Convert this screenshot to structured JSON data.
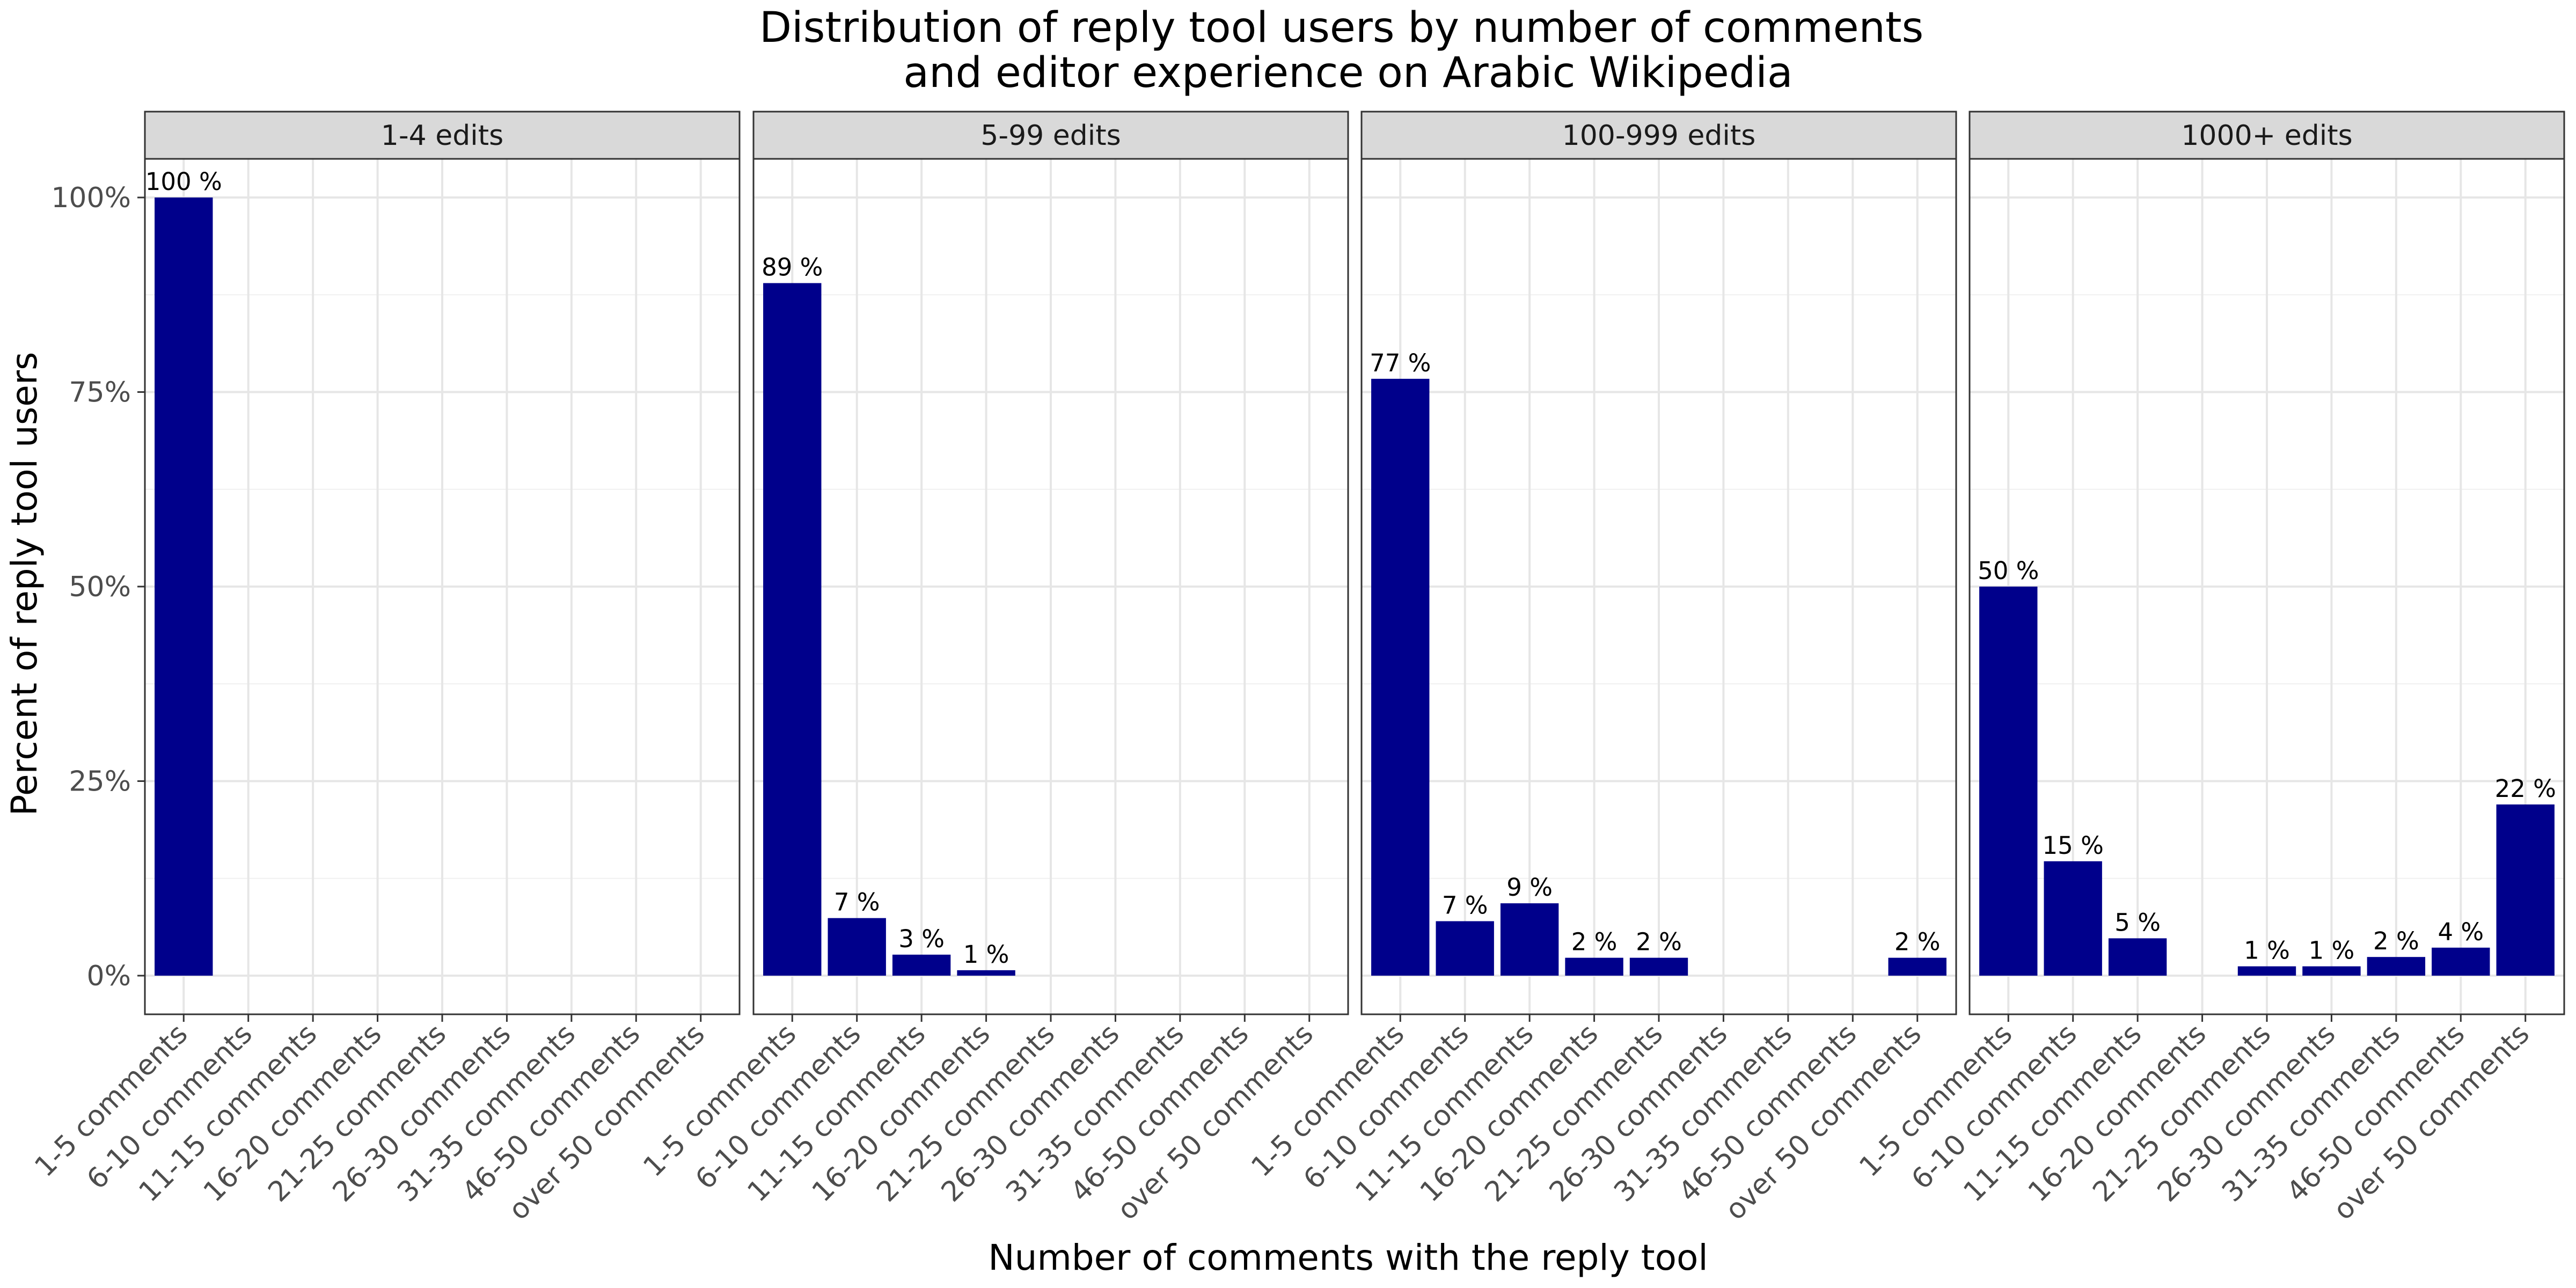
{
  "chart_data": {
    "type": "bar",
    "title": "Distribution of reply tool users by number of comments\nand editor experience on Arabic Wikipedia",
    "xlabel": "Number of comments with the reply tool",
    "ylabel": "Percent of reply tool users",
    "ylim": [
      0,
      1.05
    ],
    "yticks": [
      0,
      0.25,
      0.5,
      0.75,
      1.0
    ],
    "ytick_labels": [
      "0%",
      "25%",
      "50%",
      "75%",
      "100%"
    ],
    "grid": true,
    "bar_color": "#00008b",
    "categories": [
      "1-5 comments",
      "6-10 comments",
      "11-15 comments",
      "16-20 comments",
      "21-25 comments",
      "26-30 comments",
      "31-35 comments",
      "46-50 comments",
      "over 50 comments"
    ],
    "facets": [
      {
        "label": "1-4 edits",
        "values": [
          1.0,
          null,
          null,
          null,
          null,
          null,
          null,
          null,
          null
        ],
        "labels": [
          "100 %",
          "",
          "",
          "",
          "",
          "",
          "",
          "",
          ""
        ]
      },
      {
        "label": "5-99 edits",
        "values": [
          0.89,
          0.074,
          0.027,
          0.007,
          null,
          null,
          null,
          null,
          null
        ],
        "labels": [
          "89 %",
          "7 %",
          "3 %",
          "1 %",
          "",
          "",
          "",
          "",
          ""
        ]
      },
      {
        "label": "100-999 edits",
        "values": [
          0.767,
          0.07,
          0.093,
          0.023,
          0.023,
          null,
          null,
          null,
          0.023
        ],
        "labels": [
          "77 %",
          "7 %",
          "9 %",
          "2 %",
          "2 %",
          "",
          "",
          "",
          "2 %"
        ]
      },
      {
        "label": "1000+ edits",
        "values": [
          0.5,
          0.147,
          0.048,
          null,
          0.012,
          0.012,
          0.024,
          0.036,
          0.22
        ],
        "labels": [
          "50 %",
          "15 %",
          "5 %",
          "",
          "1 %",
          "1 %",
          "2 %",
          "4 %",
          "22 %"
        ]
      }
    ]
  }
}
